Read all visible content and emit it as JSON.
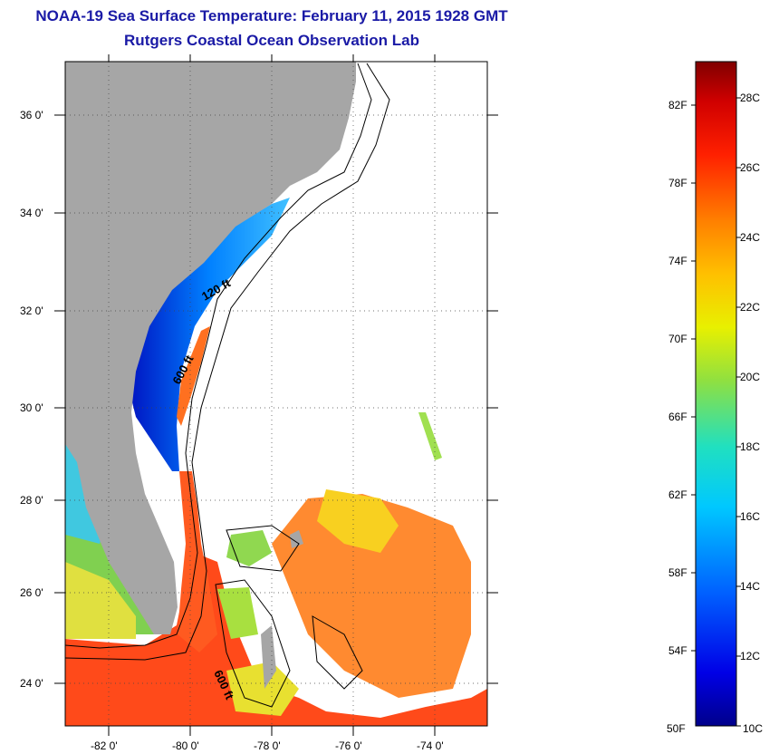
{
  "header": {
    "title": "NOAA-19 Sea Surface Temperature:  February 11, 2015 1928 GMT",
    "subtitle": "Rutgers Coastal Ocean Observation Lab"
  },
  "map": {
    "lat_labels": [
      "36 0'",
      "34 0'",
      "32 0'",
      "30 0'",
      "28 0'",
      "26 0'",
      "24 0'"
    ],
    "lon_labels": [
      "-82 0'",
      "-80 0'",
      "-78 0'",
      "-76 0'",
      "-74 0'"
    ],
    "contour_labels": [
      "120 ft",
      "600 ft",
      "600 ft"
    ],
    "colors": {
      "land": "#a6a6a6",
      "cloud": "#ffffff"
    }
  },
  "colorbar": {
    "f_labels": [
      "82F",
      "78F",
      "74F",
      "70F",
      "66F",
      "62F",
      "58F",
      "54F",
      "50F"
    ],
    "c_labels": [
      "28C",
      "26C",
      "24C",
      "22C",
      "20C",
      "18C",
      "16C",
      "14C",
      "12C",
      "10C"
    ]
  }
}
